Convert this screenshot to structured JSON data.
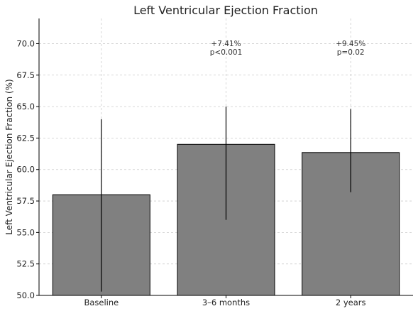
{
  "chart_data": {
    "type": "bar",
    "title": "Left Ventricular Ejection Fraction",
    "xlabel": "",
    "ylabel": "Left Ventricular Ejection Fraction (%)",
    "categories": [
      "Baseline",
      "3–6 months",
      "2 years"
    ],
    "values": [
      58.0,
      62.0,
      61.35
    ],
    "error_low": [
      50.3,
      56.0,
      58.2
    ],
    "error_high": [
      64.0,
      65.0,
      64.8
    ],
    "ylim": [
      50.0,
      72.0
    ],
    "yticks": [
      "50.0",
      "52.5",
      "55.0",
      "57.5",
      "60.0",
      "62.5",
      "65.0",
      "67.5",
      "70.0"
    ],
    "grid": true,
    "bar_color": "#808080",
    "annotations": [
      null,
      {
        "lines": [
          "+7.41%",
          "p<0.001"
        ]
      },
      {
        "lines": [
          "+9.45%",
          "p=0.02"
        ]
      }
    ]
  }
}
